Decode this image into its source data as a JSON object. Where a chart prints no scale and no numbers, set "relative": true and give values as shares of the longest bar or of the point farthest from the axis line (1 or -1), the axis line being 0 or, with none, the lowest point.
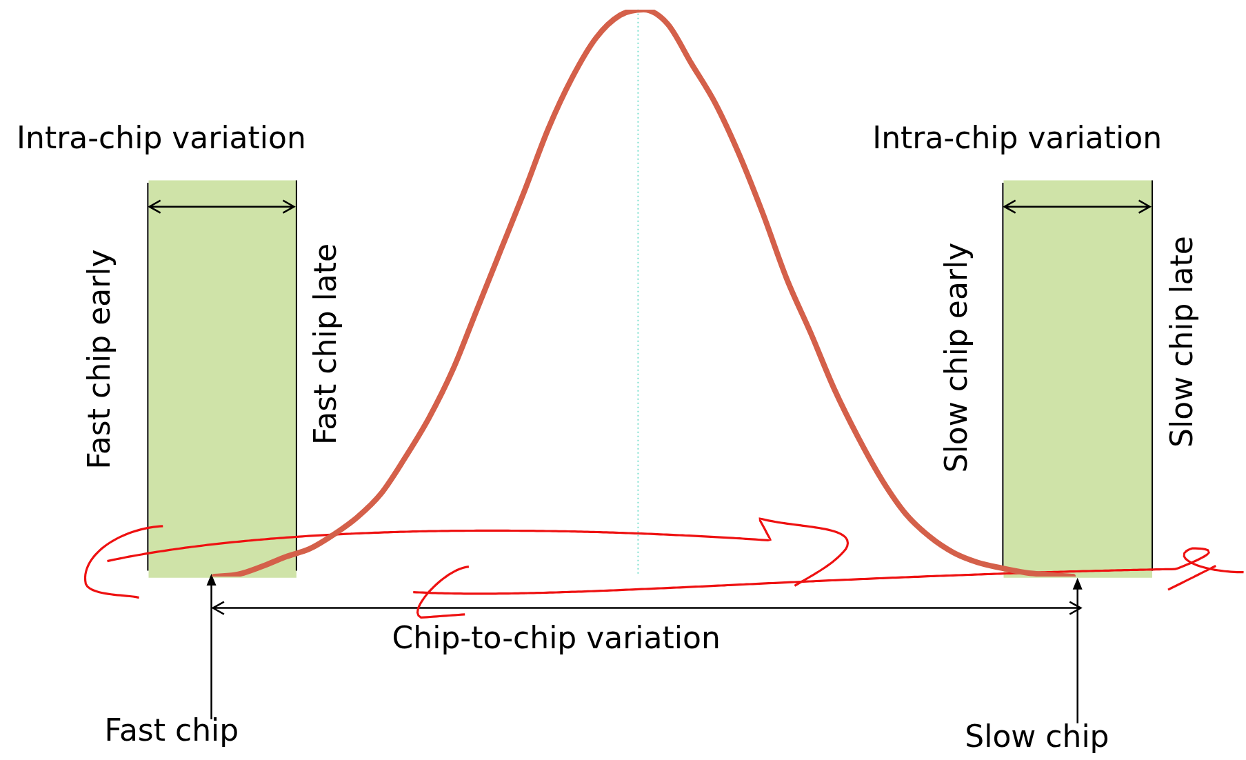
{
  "chart_data": {
    "type": "line",
    "relative": true,
    "categories": [
      null,
      null,
      null,
      null,
      null,
      null,
      null,
      null,
      null,
      null,
      null,
      null,
      null,
      null,
      null,
      null,
      null,
      null,
      null,
      null,
      null,
      null,
      null,
      null,
      null,
      null,
      null,
      null,
      null,
      null,
      null,
      null,
      null,
      null,
      null,
      null,
      null,
      null,
      null,
      null,
      null,
      null,
      null,
      null,
      null,
      null,
      null
    ],
    "series": [
      {
        "color": "#d4604a",
        "values": [
          null,
          null,
          null,
          null,
          null,
          0,
          0.004,
          0.018,
          0.035,
          0.049,
          0.074,
          0.105,
          0.147,
          0.21,
          0.28,
          0.365,
          0.47,
          0.575,
          0.68,
          0.79,
          0.88,
          0.95,
          0.99,
          1,
          0.975,
          0.905,
          0.835,
          0.745,
          0.64,
          0.525,
          0.43,
          0.33,
          0.245,
          0.17,
          0.11,
          0.07,
          0.042,
          0.025,
          0.015,
          0.007,
          0.003,
          0,
          null,
          null,
          null,
          null,
          null
        ]
      }
    ],
    "legend": false,
    "marker": "none",
    "annotations": [
      "Intra-chip variation",
      "Intra-chip variation",
      "Fast chip early",
      "Fast chip late",
      "Slow chip early",
      "Slow chip late",
      "Chip-to-chip variation",
      "Fast chip",
      "Slow chip"
    ]
  }
}
